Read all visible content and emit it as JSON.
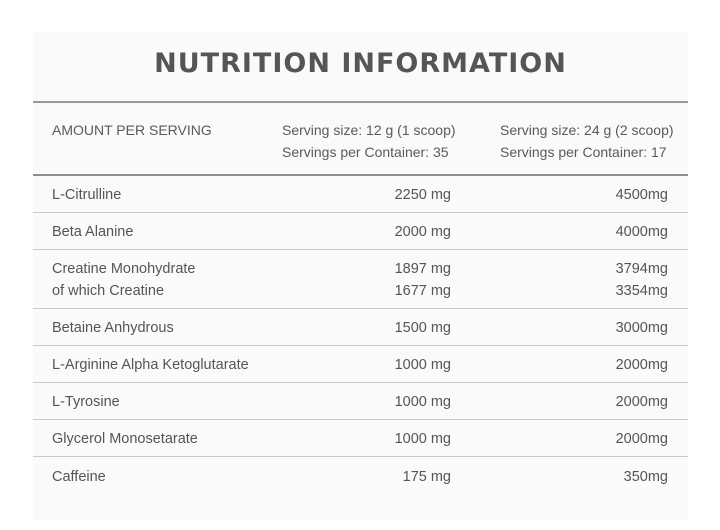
{
  "title": "NUTRITION INFORMATION",
  "header": {
    "amount": "AMOUNT PER SERVING",
    "col1_line1": "Serving size: 12 g (1 scoop)",
    "col1_line2": "Servings per Container: 35",
    "col2_line1": "Serving size: 24 g (2 scoop)",
    "col2_line2": "Servings per Container: 17"
  },
  "rows": [
    {
      "name": "L-Citrulline",
      "v1": "2250 mg",
      "v2": "4500mg"
    },
    {
      "name": "Beta Alanine",
      "v1": "2000 mg",
      "v2": "4000mg"
    },
    {
      "name": "Creatine Monohydrate",
      "name2": "of which Creatine",
      "v1": "1897 mg",
      "v1b": "1677 mg",
      "v2": "3794mg",
      "v2b": "3354mg"
    },
    {
      "name": "Betaine Anhydrous",
      "v1": "1500 mg",
      "v2": "3000mg"
    },
    {
      "name": "L-Arginine Alpha Ketoglutarate",
      "v1": "1000 mg",
      "v2": "2000mg"
    },
    {
      "name": "L-Tyrosine",
      "v1": "1000 mg",
      "v2": "2000mg"
    },
    {
      "name": "Glycerol Monosetarate",
      "v1": "1000 mg",
      "v2": "2000mg"
    },
    {
      "name": "Caffeine",
      "v1": "175 mg",
      "v2": "350mg"
    }
  ]
}
